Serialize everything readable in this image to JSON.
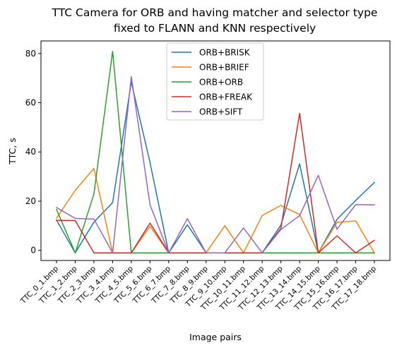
{
  "chart_data": {
    "type": "line",
    "title_lines": [
      "TTC Camera for ORB and having matcher and selector type",
      "fixed to FLANN and KNN respectively"
    ],
    "xlabel": "Image pairs",
    "ylabel": "TTC, s",
    "categories": [
      "TTC_0_1.bmp",
      "TTC_1_2.bmp",
      "TTC_2_3.bmp",
      "TTC_3_4.bmp",
      "TTC_4_5.bmp",
      "TTC_5_6.bmp",
      "TTC_6_7.bmp",
      "TTC_7_8.bmp",
      "TTC_8_9.bmp",
      "TTC_9_10.bmp",
      "TTC_10_11.bmp",
      "TTC_11_12.bmp",
      "TTC_12_13.bmp",
      "TTC_13_14.bmp",
      "TTC_14_15.bmp",
      "TTC_15_16.bmp",
      "TTC_16_17.bmp",
      "TTC_17_18.bmp"
    ],
    "ylim": [
      -4.1,
      85.1
    ],
    "yticks": [
      0,
      20,
      40,
      60,
      80
    ],
    "ytick_labels": [
      "0",
      "20",
      "40",
      "60",
      "80"
    ],
    "grid": false,
    "legend_position": "top-center",
    "series": [
      {
        "name": "ORB+BRISK",
        "color": "#1f77b4",
        "values": [
          12.3,
          -1,
          11.5,
          19.4,
          68.4,
          35.7,
          -1,
          10.4,
          -1,
          -1,
          -1,
          -1,
          10.3,
          35.2,
          -1,
          12.6,
          20.3,
          27.6
        ]
      },
      {
        "name": "ORB+BRIEF",
        "color": "#ff7f0e",
        "values": [
          13.1,
          24.4,
          33.3,
          -1,
          -1,
          9.8,
          -1,
          -1,
          -1,
          10.0,
          -1,
          14.2,
          18.3,
          14.6,
          -1,
          11.4,
          12.0,
          -1
        ]
      },
      {
        "name": "ORB+ORB",
        "color": "#2ca02c",
        "values": [
          16.6,
          -1,
          22.9,
          80.9,
          -1,
          -1,
          -1,
          -1,
          -1,
          -1,
          -1,
          -1,
          -1,
          -1,
          -1,
          -1,
          -1,
          -1
        ]
      },
      {
        "name": "ORB+FREAK",
        "color": "#d62728",
        "values": [
          12.2,
          12.1,
          -1,
          -1,
          -1,
          11.1,
          -1,
          -1,
          -1,
          -1,
          -1,
          -1,
          9.0,
          55.7,
          -1,
          5.9,
          -1,
          4.1
        ]
      },
      {
        "name": "ORB+SIFT",
        "color": "#9467bd",
        "values": [
          17.4,
          13.0,
          12.7,
          -1,
          70.6,
          18.5,
          -1,
          12.9,
          -1,
          -1,
          9.1,
          -1,
          8.5,
          14.1,
          30.5,
          8.6,
          18.6,
          18.5
        ]
      }
    ]
  }
}
